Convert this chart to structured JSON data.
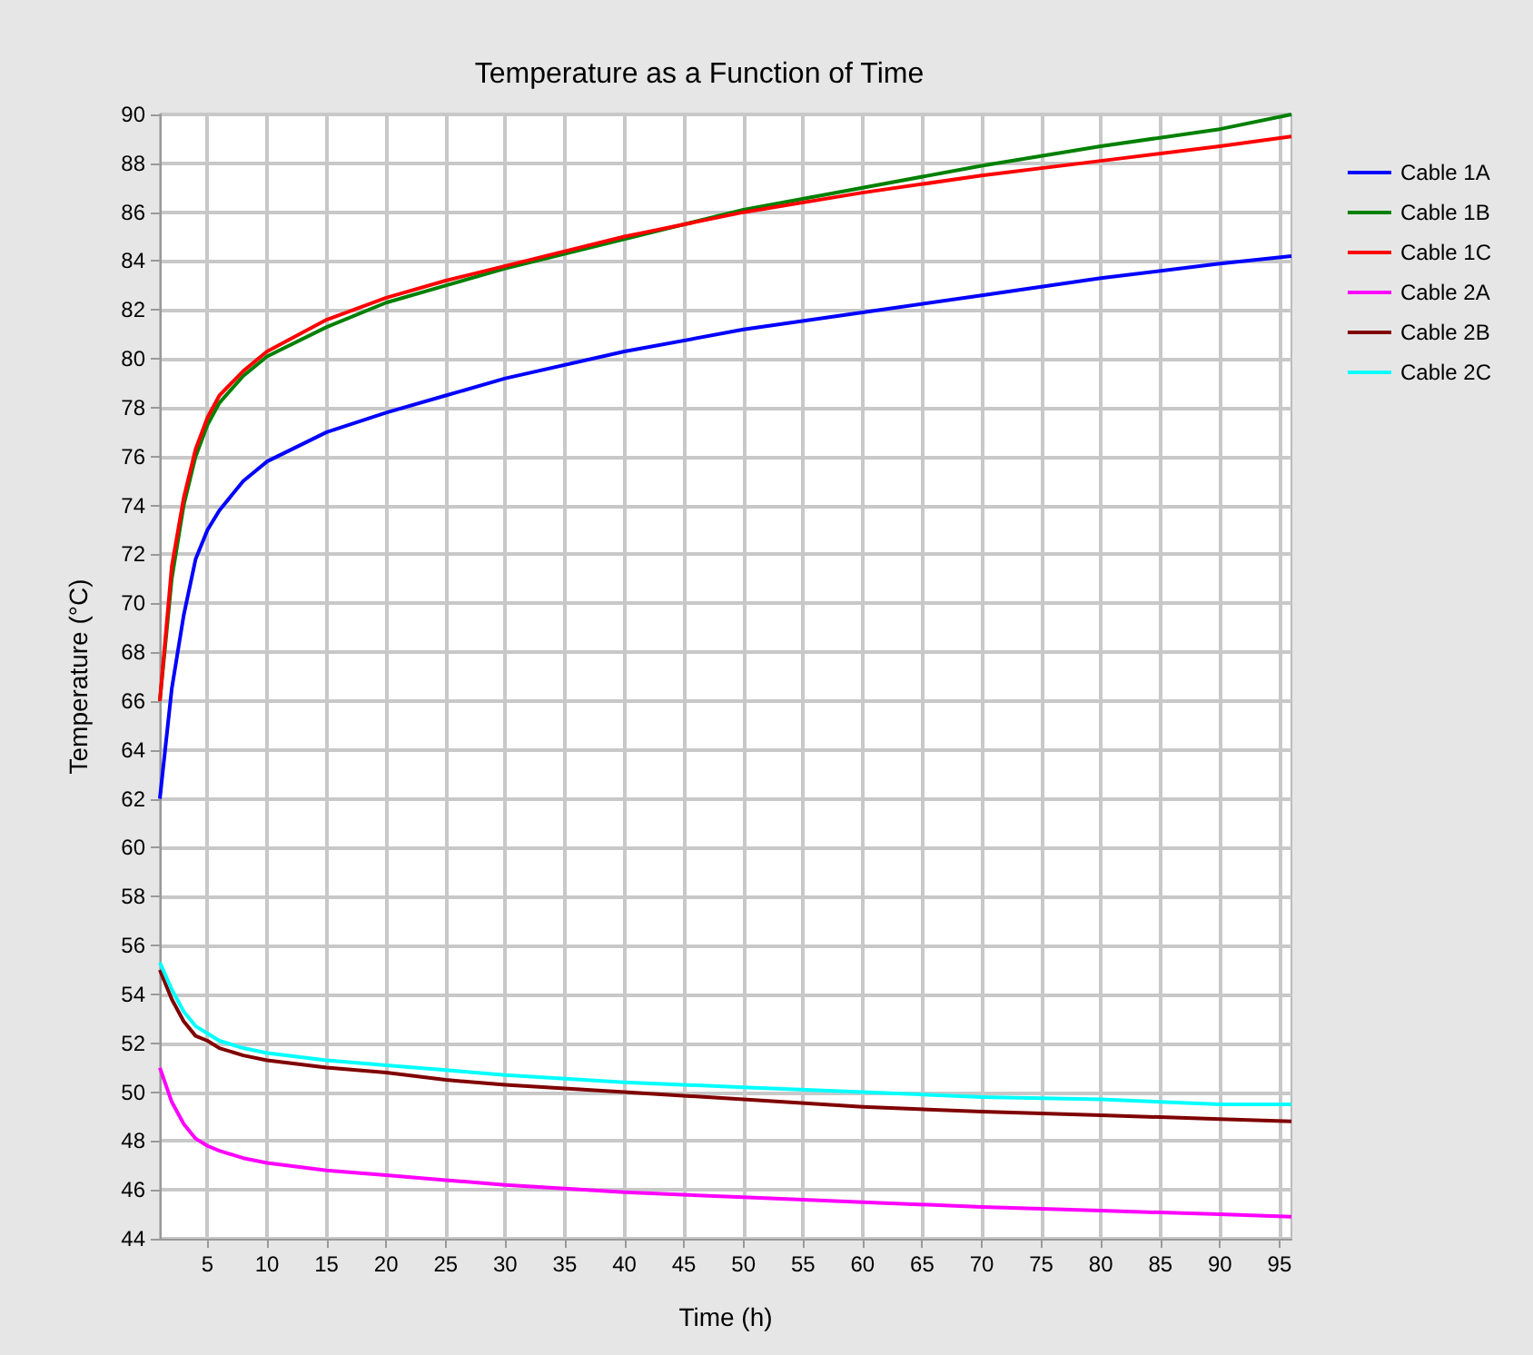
{
  "chart_data": {
    "type": "line",
    "title": "Temperature as a Function of Time",
    "xlabel": "Time (h)",
    "ylabel": "Temperature (°C)",
    "x": [
      1,
      2,
      3,
      4,
      5,
      6,
      8,
      10,
      15,
      20,
      25,
      30,
      40,
      50,
      60,
      70,
      80,
      90,
      96
    ],
    "series": [
      {
        "name": "Cable 1A",
        "color": "#0000ff",
        "values": [
          62,
          66.5,
          69.5,
          71.8,
          73,
          73.8,
          75,
          75.8,
          77,
          77.8,
          78.5,
          79.2,
          80.3,
          81.2,
          81.9,
          82.6,
          83.3,
          83.9,
          84.2
        ]
      },
      {
        "name": "Cable 1B",
        "color": "#008000",
        "values": [
          66,
          71,
          74,
          76,
          77.3,
          78.2,
          79.3,
          80.1,
          81.3,
          82.3,
          83,
          83.7,
          84.9,
          86.1,
          87,
          87.9,
          88.7,
          89.4,
          90
        ]
      },
      {
        "name": "Cable 1C",
        "color": "#ff0000",
        "values": [
          66,
          71.5,
          74.3,
          76.3,
          77.6,
          78.5,
          79.5,
          80.3,
          81.6,
          82.5,
          83.2,
          83.8,
          85,
          86,
          86.8,
          87.5,
          88.1,
          88.7,
          89.1
        ]
      },
      {
        "name": "Cable 2A",
        "color": "#ff00ff",
        "values": [
          51,
          49.6,
          48.7,
          48.1,
          47.8,
          47.6,
          47.3,
          47.1,
          46.8,
          46.6,
          46.4,
          46.2,
          45.9,
          45.7,
          45.5,
          45.3,
          45.15,
          45,
          44.9
        ]
      },
      {
        "name": "Cable 2B",
        "color": "#800000",
        "values": [
          55,
          53.8,
          52.9,
          52.3,
          52.1,
          51.8,
          51.5,
          51.3,
          51,
          50.8,
          50.5,
          50.3,
          50,
          49.7,
          49.4,
          49.2,
          49.05,
          48.9,
          48.8
        ]
      },
      {
        "name": "Cable 2C",
        "color": "#00ffff",
        "values": [
          55.3,
          54.2,
          53.3,
          52.7,
          52.4,
          52.1,
          51.8,
          51.6,
          51.3,
          51.1,
          50.9,
          50.7,
          50.4,
          50.2,
          50,
          49.8,
          49.7,
          49.5,
          49.5
        ]
      }
    ],
    "xlim": [
      1,
      96
    ],
    "xticks": [
      5,
      10,
      15,
      20,
      25,
      30,
      35,
      40,
      45,
      50,
      55,
      60,
      65,
      70,
      75,
      80,
      85,
      90,
      95
    ],
    "ylim": [
      44,
      90
    ],
    "yticks": [
      44,
      46,
      48,
      50,
      52,
      54,
      56,
      58,
      60,
      62,
      64,
      66,
      68,
      70,
      72,
      74,
      76,
      78,
      80,
      82,
      84,
      86,
      88,
      90
    ],
    "grid": true,
    "legend": "right",
    "marker": "none",
    "line_style": "solid"
  }
}
